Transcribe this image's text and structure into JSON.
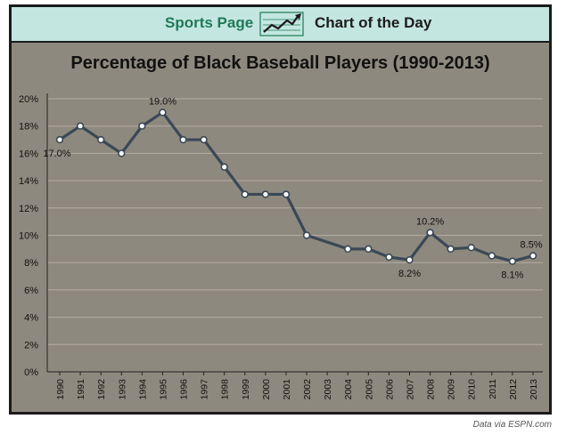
{
  "banner": {
    "left_label": "Sports Page",
    "right_label": "Chart of the Day",
    "icon": "trend-line-icon"
  },
  "credit": "Data via ESPN.com",
  "colors": {
    "banner_bg": "#c4e6e1",
    "brand_green": "#1f7a55",
    "plot_bg": "#8e897e",
    "line": "#3a4856",
    "marker_fill": "#ffffff"
  },
  "chart_data": {
    "type": "line",
    "title": "Percentage of Black Baseball Players (1990-2013)",
    "xlabel": "",
    "ylabel": "",
    "categories": [
      "1990",
      "1991",
      "1992",
      "1993",
      "1994",
      "1995",
      "1996",
      "1997",
      "1998",
      "1999",
      "2000",
      "2001",
      "2002",
      "2003",
      "2004",
      "2005",
      "2006",
      "2007",
      "2008",
      "2009",
      "2010",
      "2011",
      "2012",
      "2013"
    ],
    "x": [
      1990,
      1991,
      1992,
      1993,
      1994,
      1995,
      1996,
      1997,
      1998,
      1999,
      2000,
      2001,
      2002,
      2003,
      2004,
      2005,
      2006,
      2007,
      2008,
      2009,
      2010,
      2011,
      2012,
      2013
    ],
    "values": [
      17,
      18,
      17,
      16,
      18,
      19,
      17,
      17,
      15,
      13,
      13,
      13,
      10,
      null,
      9,
      9,
      8.4,
      8.2,
      10.2,
      9,
      9.1,
      8.5,
      8.1,
      8.5
    ],
    "ylim": [
      0,
      20
    ],
    "ytick_step": 2,
    "ytick_format": "percent",
    "grid": true,
    "legend": "none",
    "data_labels": [
      {
        "year": 1990,
        "text": "17.0%",
        "position": "below"
      },
      {
        "year": 1995,
        "text": "19.0%",
        "position": "above"
      },
      {
        "year": 2007,
        "text": "8.2%",
        "position": "below"
      },
      {
        "year": 2008,
        "text": "10.2%",
        "position": "above"
      },
      {
        "year": 2012,
        "text": "8.1%",
        "position": "below"
      },
      {
        "year": 2013,
        "text": "8.5%",
        "position": "above"
      }
    ]
  }
}
